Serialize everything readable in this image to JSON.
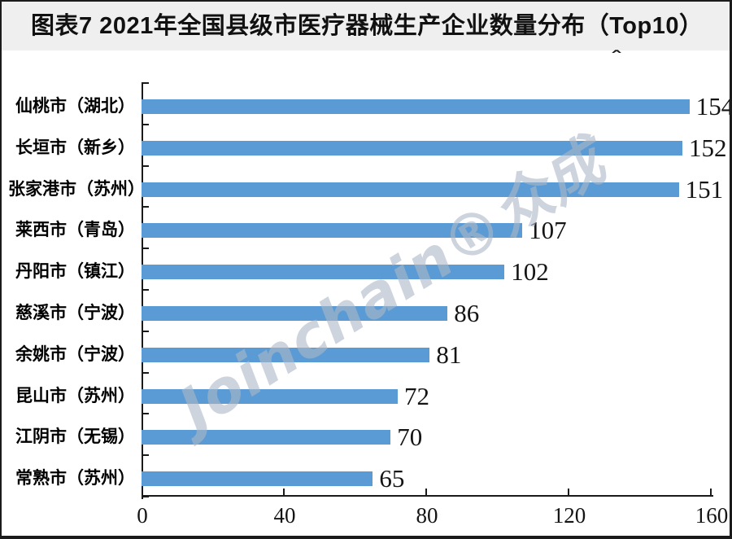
{
  "title": "图表7 2021年全国县级市医疗器械生产企业数量分布（Top10）",
  "watermark_text": "Joinchain®众成",
  "stray_mark": "ˆ",
  "colors": {
    "bar": "#5B9BD5",
    "axis": "#1a1a1a",
    "title_band_bg": "#f0eff0",
    "text": "#111111",
    "watermark": "rgba(174,184,198,0.6)"
  },
  "chart_data": {
    "type": "bar",
    "orientation": "horizontal",
    "title": "图表7 2021年全国县级市医疗器械生产企业数量分布（Top10）",
    "categories": [
      "仙桃市（湖北）",
      "长垣市（新乡）",
      "张家港市（苏州）",
      "莱西市（青岛）",
      "丹阳市（镇江）",
      "慈溪市（宁波）",
      "余姚市（宁波）",
      "昆山市（苏州）",
      "江阴市（无锡）",
      "常熟市（苏州）"
    ],
    "values": [
      154,
      152,
      151,
      107,
      102,
      86,
      81,
      72,
      70,
      65
    ],
    "data_labels": [
      154,
      152,
      151,
      107,
      102,
      86,
      81,
      72,
      70,
      65
    ],
    "xlim": [
      0,
      160
    ],
    "x_ticks": [
      0,
      40,
      80,
      120,
      160
    ],
    "xlabel": "",
    "ylabel": "",
    "grid": false,
    "legend": "none"
  }
}
